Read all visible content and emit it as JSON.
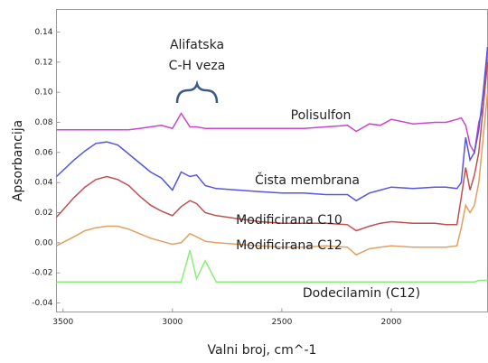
{
  "chart_data": {
    "type": "line",
    "x_label": "Valni broj, cm^-1",
    "y_label": "Apsorbancija",
    "annotations": [
      "Alifatska",
      "C-H veza"
    ],
    "x": [
      3530,
      3450,
      3400,
      3350,
      3300,
      3250,
      3200,
      3150,
      3100,
      3050,
      3000,
      2960,
      2920,
      2890,
      2850,
      2800,
      2700,
      2600,
      2500,
      2400,
      2300,
      2200,
      2160,
      2100,
      2050,
      2000,
      1900,
      1800,
      1750,
      1700,
      1680,
      1660,
      1640,
      1620,
      1600,
      1580,
      1560
    ],
    "series": [
      {
        "name": "Polisulfon",
        "color": "#cc44cc",
        "values": [
          0.075,
          0.075,
          0.075,
          0.075,
          0.075,
          0.075,
          0.075,
          0.076,
          0.077,
          0.078,
          0.076,
          0.086,
          0.077,
          0.077,
          0.076,
          0.076,
          0.076,
          0.076,
          0.076,
          0.076,
          0.077,
          0.078,
          0.074,
          0.079,
          0.078,
          0.082,
          0.079,
          0.08,
          0.08,
          0.082,
          0.083,
          0.078,
          0.065,
          0.06,
          0.08,
          0.09,
          0.13
        ]
      },
      {
        "name": "Čista membrana",
        "color": "#5555dd",
        "values": [
          0.044,
          0.055,
          0.061,
          0.066,
          0.067,
          0.065,
          0.059,
          0.053,
          0.047,
          0.043,
          0.035,
          0.047,
          0.044,
          0.045,
          0.038,
          0.036,
          0.035,
          0.034,
          0.033,
          0.033,
          0.032,
          0.032,
          0.028,
          0.033,
          0.035,
          0.037,
          0.036,
          0.037,
          0.037,
          0.036,
          0.04,
          0.07,
          0.055,
          0.06,
          0.075,
          0.1,
          0.13
        ]
      },
      {
        "name": "Modificirana C10",
        "color": "#c05050",
        "values": [
          0.017,
          0.03,
          0.037,
          0.042,
          0.044,
          0.042,
          0.038,
          0.031,
          0.025,
          0.021,
          0.018,
          0.024,
          0.028,
          0.026,
          0.02,
          0.018,
          0.016,
          0.014,
          0.013,
          0.013,
          0.013,
          0.012,
          0.008,
          0.011,
          0.013,
          0.014,
          0.013,
          0.013,
          0.012,
          0.012,
          0.03,
          0.05,
          0.035,
          0.045,
          0.06,
          0.09,
          0.12
        ]
      },
      {
        "name": "Modificirana C12",
        "color": "#e0a060",
        "values": [
          -0.002,
          0.004,
          0.008,
          0.01,
          0.011,
          0.011,
          0.009,
          0.006,
          0.003,
          0.001,
          -0.001,
          0.0,
          0.006,
          0.004,
          0.001,
          0.0,
          -0.001,
          -0.002,
          -0.003,
          -0.003,
          -0.002,
          -0.003,
          -0.008,
          -0.004,
          -0.003,
          -0.002,
          -0.003,
          -0.003,
          -0.003,
          -0.002,
          0.01,
          0.025,
          0.02,
          0.025,
          0.04,
          0.07,
          0.1
        ]
      },
      {
        "name": "Dodecilamin (C12)",
        "color": "#88ee77",
        "values": [
          -0.026,
          -0.026,
          -0.026,
          -0.026,
          -0.026,
          -0.026,
          -0.026,
          -0.026,
          -0.026,
          -0.026,
          -0.026,
          -0.026,
          -0.005,
          -0.024,
          -0.012,
          -0.026,
          -0.026,
          -0.026,
          -0.026,
          -0.026,
          -0.026,
          -0.026,
          -0.026,
          -0.026,
          -0.026,
          -0.026,
          -0.026,
          -0.026,
          -0.026,
          -0.026,
          -0.026,
          -0.026,
          -0.026,
          -0.026,
          -0.025,
          -0.025,
          -0.025
        ]
      }
    ],
    "xlim": [
      3530,
      1560
    ],
    "xticks": [
      3500,
      3000,
      2500,
      2000
    ],
    "ylim": [
      -0.046,
      0.155
    ],
    "yticks": [
      {
        "value": 0.14,
        "label": "0.14"
      },
      {
        "value": 0.12,
        "label": "0.12"
      },
      {
        "value": 0.1,
        "label": "0.10"
      },
      {
        "value": 0.08,
        "label": "0.08"
      },
      {
        "value": 0.06,
        "label": "0.06"
      },
      {
        "value": 0.04,
        "label": "0.04"
      },
      {
        "value": 0.02,
        "label": "0.02"
      },
      {
        "value": 0,
        "label": "0.00"
      },
      {
        "value": -0.02,
        "label": "-0.02"
      },
      {
        "value": -0.04,
        "label": "-0.04"
      }
    ],
    "grid": false
  }
}
